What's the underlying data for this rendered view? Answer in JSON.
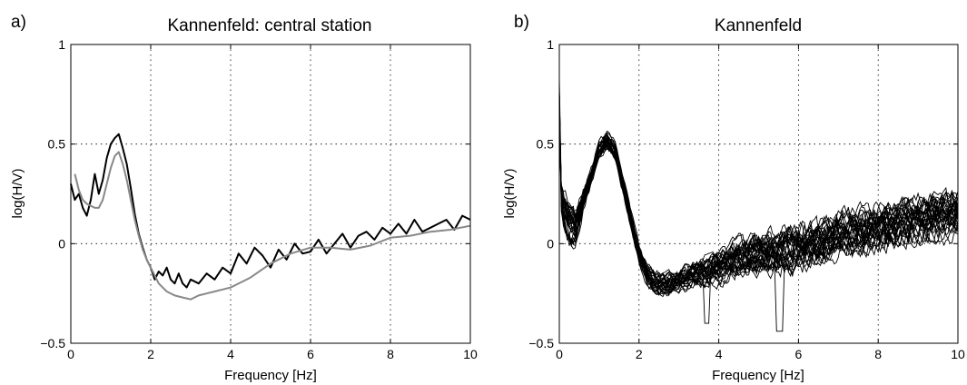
{
  "chart_data": [
    {
      "type": "line",
      "panel_label": "a)",
      "title": "Kannenfeld: central station",
      "xlabel": "Frequency [Hz]",
      "ylabel": "log(H/V)",
      "xlim": [
        0,
        10
      ],
      "ylim": [
        -0.5,
        1
      ],
      "xticks": [
        0,
        2,
        4,
        6,
        8,
        10
      ],
      "yticks": [
        -0.5,
        0,
        0.5,
        1
      ],
      "xtick_labels": [
        "0",
        "2",
        "4",
        "6",
        "8",
        "10"
      ],
      "ytick_labels": [
        "−0.5",
        "0",
        "0.5",
        "1"
      ],
      "grid": true,
      "series": [
        {
          "color": "#000000",
          "x": [
            0,
            0.1,
            0.2,
            0.3,
            0.4,
            0.5,
            0.6,
            0.7,
            0.8,
            0.9,
            1.0,
            1.1,
            1.2,
            1.3,
            1.4,
            1.5,
            1.6,
            1.7,
            1.8,
            1.9,
            2.0,
            2.1,
            2.2,
            2.3,
            2.4,
            2.5,
            2.6,
            2.7,
            2.8,
            2.9,
            3.0,
            3.2,
            3.4,
            3.6,
            3.8,
            4.0,
            4.2,
            4.4,
            4.6,
            4.8,
            5.0,
            5.2,
            5.4,
            5.6,
            5.8,
            6.0,
            6.2,
            6.4,
            6.6,
            6.8,
            7.0,
            7.2,
            7.4,
            7.6,
            7.8,
            8.0,
            8.2,
            8.4,
            8.6,
            8.8,
            9.0,
            9.2,
            9.4,
            9.6,
            9.8,
            10.0
          ],
          "y": [
            0.3,
            0.22,
            0.25,
            0.18,
            0.14,
            0.22,
            0.35,
            0.25,
            0.32,
            0.43,
            0.5,
            0.53,
            0.55,
            0.48,
            0.4,
            0.28,
            0.15,
            0.05,
            -0.02,
            -0.08,
            -0.12,
            -0.18,
            -0.14,
            -0.16,
            -0.12,
            -0.18,
            -0.2,
            -0.15,
            -0.2,
            -0.22,
            -0.18,
            -0.2,
            -0.15,
            -0.18,
            -0.12,
            -0.15,
            -0.05,
            -0.1,
            -0.02,
            -0.06,
            -0.12,
            -0.03,
            -0.08,
            0.0,
            -0.05,
            -0.04,
            0.02,
            -0.05,
            0.0,
            0.05,
            -0.02,
            0.04,
            0.06,
            0.02,
            0.08,
            0.05,
            0.1,
            0.05,
            0.12,
            0.06,
            0.08,
            0.1,
            0.12,
            0.07,
            0.14,
            0.12
          ]
        },
        {
          "color": "#888888",
          "x": [
            0.1,
            0.2,
            0.3,
            0.4,
            0.5,
            0.6,
            0.7,
            0.8,
            0.9,
            1.0,
            1.1,
            1.2,
            1.3,
            1.4,
            1.5,
            1.6,
            1.7,
            1.8,
            1.9,
            2.0,
            2.2,
            2.4,
            2.6,
            2.8,
            3.0,
            3.2,
            3.4,
            3.6,
            3.8,
            4.0,
            4.5,
            5.0,
            5.5,
            6.0,
            6.5,
            7.0,
            7.5,
            8.0,
            8.5,
            9.0,
            9.5,
            10.0
          ],
          "y": [
            0.35,
            0.27,
            0.22,
            0.2,
            0.19,
            0.18,
            0.18,
            0.22,
            0.3,
            0.38,
            0.44,
            0.46,
            0.4,
            0.32,
            0.22,
            0.12,
            0.04,
            -0.03,
            -0.08,
            -0.12,
            -0.2,
            -0.24,
            -0.26,
            -0.27,
            -0.28,
            -0.26,
            -0.25,
            -0.24,
            -0.23,
            -0.22,
            -0.17,
            -0.1,
            -0.05,
            -0.02,
            -0.02,
            -0.03,
            -0.01,
            0.03,
            0.04,
            0.06,
            0.07,
            0.09
          ]
        }
      ]
    },
    {
      "type": "line",
      "panel_label": "b)",
      "title": "Kannenfeld",
      "xlabel": "Frequency [Hz]",
      "ylabel": "log(H/V)",
      "xlim": [
        0,
        10
      ],
      "ylim": [
        -0.5,
        1
      ],
      "xticks": [
        0,
        2,
        4,
        6,
        8,
        10
      ],
      "yticks": [
        -0.5,
        0,
        0.5,
        1
      ],
      "xtick_labels": [
        "0",
        "2",
        "4",
        "6",
        "8",
        "10"
      ],
      "ytick_labels": [
        "−0.5",
        "0",
        "0.5",
        "1"
      ],
      "grid": true,
      "series_count": 30,
      "envelope": {
        "x": [
          0,
          0.1,
          0.2,
          0.3,
          0.4,
          0.6,
          0.8,
          1.0,
          1.2,
          1.4,
          1.6,
          1.8,
          2.0,
          2.2,
          2.4,
          2.6,
          2.8,
          3.0,
          3.5,
          4.0,
          4.5,
          5.0,
          5.5,
          6.0,
          6.5,
          7.0,
          7.5,
          8.0,
          8.5,
          9.0,
          9.5,
          10.0
        ],
        "mean": [
          0.3,
          0.18,
          0.12,
          0.1,
          0.08,
          0.22,
          0.34,
          0.47,
          0.52,
          0.46,
          0.3,
          0.12,
          -0.05,
          -0.15,
          -0.2,
          -0.2,
          -0.2,
          -0.18,
          -0.15,
          -0.12,
          -0.07,
          -0.05,
          -0.04,
          -0.02,
          0.0,
          0.04,
          0.06,
          0.08,
          0.1,
          0.12,
          0.14,
          0.15
        ],
        "spread": [
          0.05,
          0.08,
          0.1,
          0.1,
          0.08,
          0.05,
          0.04,
          0.04,
          0.04,
          0.04,
          0.04,
          0.04,
          0.04,
          0.05,
          0.05,
          0.05,
          0.05,
          0.05,
          0.06,
          0.07,
          0.08,
          0.09,
          0.1,
          0.1,
          0.1,
          0.1,
          0.1,
          0.1,
          0.1,
          0.1,
          0.1,
          0.1
        ]
      },
      "max_value_near_zero": 1.0,
      "min_value": -0.44
    }
  ]
}
